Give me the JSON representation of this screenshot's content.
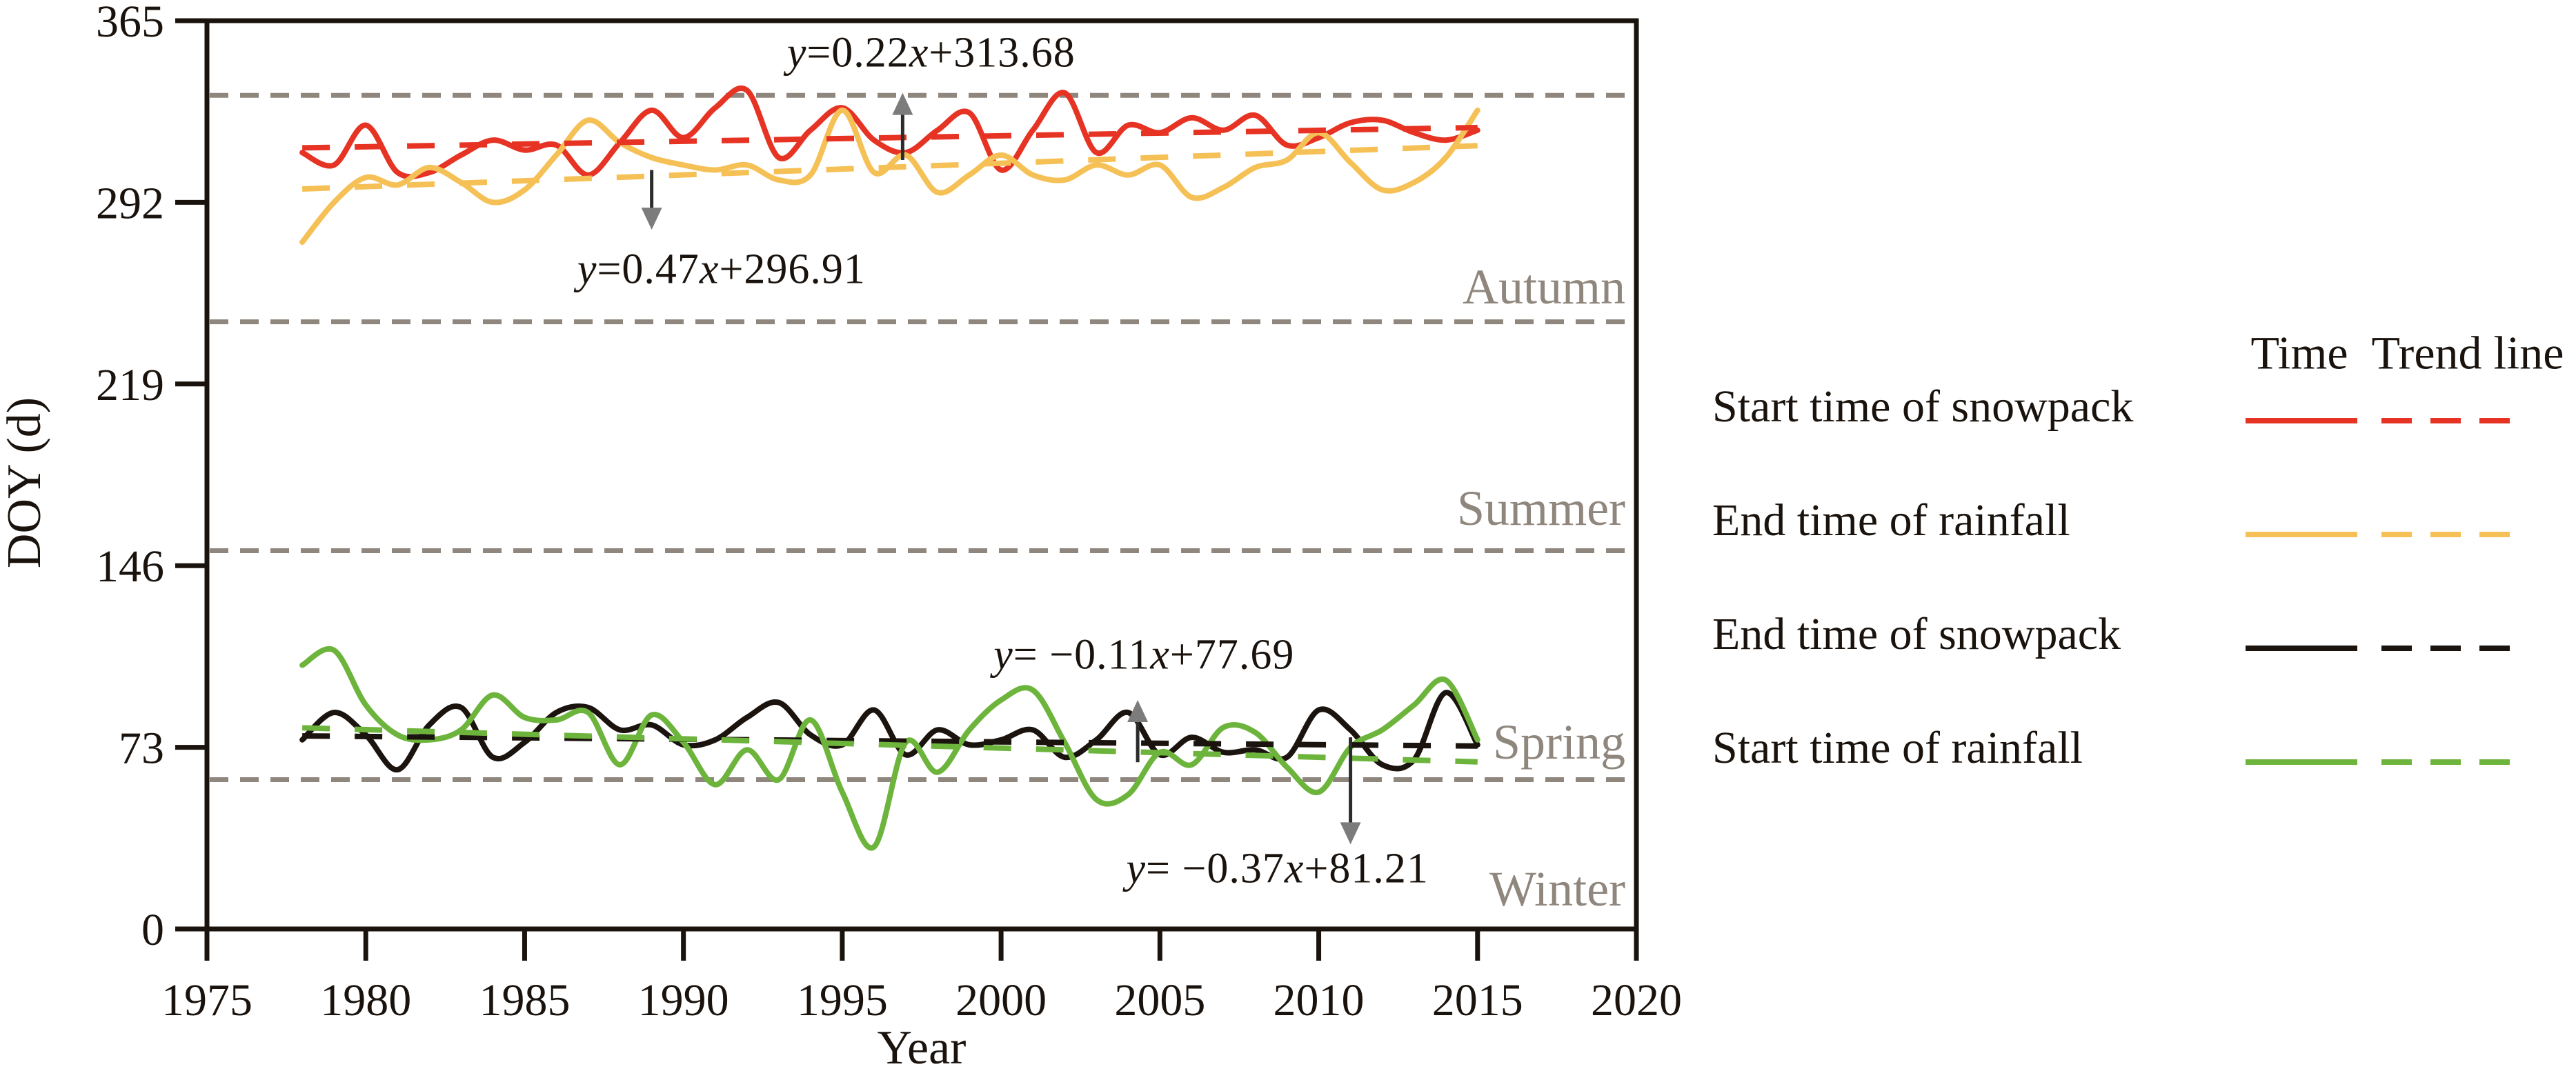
{
  "chart_data": {
    "type": "line",
    "title": "",
    "xlabel": "Year",
    "ylabel": "DOY (d)",
    "xlim": [
      1975,
      2020
    ],
    "ylim": [
      0,
      365
    ],
    "xticks": [
      "1975",
      "1980",
      "1985",
      "1990",
      "1995",
      "2000",
      "2005",
      "2010",
      "2015",
      "2020"
    ],
    "yticks": [
      "0",
      "73",
      "146",
      "219",
      "292",
      "365"
    ],
    "grid_on": false,
    "axis_color": "#1a130d",
    "season_line_color": "#8f867d",
    "x_years": [
      1978,
      1979,
      1980,
      1981,
      1982,
      1983,
      1984,
      1985,
      1986,
      1987,
      1988,
      1989,
      1990,
      1991,
      1992,
      1993,
      1994,
      1995,
      1996,
      1997,
      1998,
      1999,
      2000,
      2001,
      2002,
      2003,
      2004,
      2005,
      2006,
      2007,
      2008,
      2009,
      2010,
      2011,
      2012,
      2013,
      2014,
      2015
    ],
    "series": [
      {
        "name": "Start time of snowpack",
        "color": "#e63323",
        "values": [
          312,
          307,
          323,
          304,
          304,
          311,
          317,
          313,
          315,
          303,
          316,
          329,
          318,
          330,
          337,
          310,
          321,
          330,
          317,
          312,
          321,
          328,
          305,
          321,
          336,
          312,
          323,
          320,
          326,
          321,
          327,
          315,
          318,
          324,
          325,
          320,
          317,
          321
        ],
        "trend": {
          "equation": "y=0.22x+313.68",
          "slope": 0.22,
          "intercept": 313.68,
          "x0_year": 1977
        }
      },
      {
        "name": "End time of rainfall",
        "color": "#f5c156",
        "values": [
          276,
          292,
          302,
          299,
          306,
          300,
          292,
          297,
          311,
          325,
          316,
          310,
          307,
          305,
          307,
          301,
          303,
          329,
          304,
          311,
          296,
          303,
          311,
          303,
          301,
          307,
          303,
          307,
          294,
          298,
          306,
          309,
          320,
          308,
          297,
          300,
          310,
          329
        ],
        "trend": {
          "equation": "y=0.47x+296.91",
          "slope": 0.47,
          "intercept": 296.91,
          "x0_year": 1977
        }
      },
      {
        "name": "End time of snowpack",
        "color": "#1b130d",
        "values": [
          76,
          87,
          78,
          64,
          82,
          89,
          69,
          75,
          87,
          89,
          80,
          82,
          74,
          76,
          85,
          91,
          78,
          74,
          88,
          70,
          80,
          74,
          76,
          80,
          69,
          76,
          87,
          70,
          77,
          71,
          72,
          69,
          88,
          80,
          66,
          68,
          95,
          74
        ],
        "trend": {
          "equation": "y=−0.11x+77.69",
          "slope": -0.11,
          "intercept": 77.69,
          "x0_year": 1977
        }
      },
      {
        "name": "Start time of rainfall",
        "color": "#6db43c",
        "values": [
          106,
          112,
          90,
          78,
          76,
          80,
          94,
          85,
          84,
          87,
          66,
          86,
          75,
          58,
          72,
          60,
          84,
          55,
          33,
          75,
          63,
          80,
          92,
          96,
          75,
          52,
          54,
          71,
          66,
          81,
          79,
          65,
          55,
          73,
          80,
          90,
          100,
          76
        ],
        "trend": {
          "equation": "y=−0.37x+81.21",
          "slope": -0.37,
          "intercept": 81.21,
          "x0_year": 1977
        }
      }
    ],
    "season_boundaries_doy": [
      335,
      244,
      152,
      60
    ],
    "season_labels": [
      {
        "text": "Autumn",
        "doy": 257
      },
      {
        "text": "Summer",
        "doy": 168
      },
      {
        "text": "Spring",
        "doy": 74
      },
      {
        "text": "Winter",
        "doy": 15
      }
    ],
    "annotations": [
      {
        "series": "Start time of snowpack",
        "parts": {
          "lhs": "y",
          "mid": "=0.22",
          "var": "x",
          "post": "+313.68"
        },
        "text_x_year": 1997.8,
        "text_doy": 352,
        "arrow": {
          "x_year": 1996.9,
          "from_doy": 309,
          "to_doy": 336
        }
      },
      {
        "series": "End time of rainfall",
        "parts": {
          "lhs": "y",
          "mid": "=0.47",
          "var": "x",
          "post": "+296.91"
        },
        "text_x_year": 1991.2,
        "text_doy": 265,
        "arrow": {
          "x_year": 1989.0,
          "from_doy": 305,
          "to_doy": 281
        }
      },
      {
        "series": "End time of snowpack",
        "parts": {
          "lhs": "y",
          "mid": "= −0.11",
          "var": "x",
          "post": "+77.69"
        },
        "text_x_year": 2004.5,
        "text_doy": 110,
        "arrow": {
          "x_year": 2004.3,
          "from_doy": 67,
          "to_doy": 92
        }
      },
      {
        "series": "Start time of rainfall",
        "parts": {
          "lhs": "y",
          "mid": "= −0.37",
          "var": "x",
          "post": "+81.21"
        },
        "text_x_year": 2008.7,
        "text_doy": 24,
        "arrow": {
          "x_year": 2011.0,
          "from_doy": 77,
          "to_doy": 34
        }
      }
    ],
    "arrow_stem_color": "#2c2c2c",
    "arrow_head_color": "#7c7c7c"
  },
  "legend": {
    "col_time": "Time",
    "col_trend": "Trend line",
    "items": [
      {
        "label": "Start time of snowpack",
        "color": "#e63323"
      },
      {
        "label": "End time of rainfall",
        "color": "#f5c156"
      },
      {
        "label": "End time of snowpack",
        "color": "#1b130d"
      },
      {
        "label": "Start time of rainfall",
        "color": "#6db43c"
      }
    ]
  }
}
